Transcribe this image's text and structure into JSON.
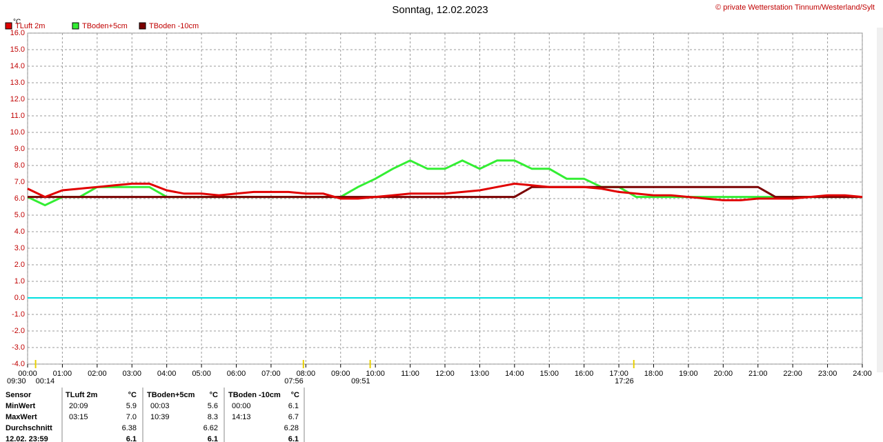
{
  "chart_data": {
    "type": "line",
    "title": "Sonntag, 12.02.2023",
    "copyright": "© private Wetterstation Tinnum/Westerland/Sylt",
    "y_label": "°C",
    "xlim": [
      0,
      24
    ],
    "ylim": [
      -4,
      16
    ],
    "grid": true,
    "xticks": [
      {
        "value": 0,
        "label": "00:00"
      },
      {
        "value": 1,
        "label": "01:00"
      },
      {
        "value": 2,
        "label": "02:00"
      },
      {
        "value": 3,
        "label": "03:00"
      },
      {
        "value": 4,
        "label": "04:00"
      },
      {
        "value": 5,
        "label": "05:00"
      },
      {
        "value": 6,
        "label": "06:00"
      },
      {
        "value": 7,
        "label": "07:00"
      },
      {
        "value": 8,
        "label": "08:00"
      },
      {
        "value": 9,
        "label": "09:00"
      },
      {
        "value": 10,
        "label": "10:00"
      },
      {
        "value": 11,
        "label": "11:00"
      },
      {
        "value": 12,
        "label": "12:00"
      },
      {
        "value": 13,
        "label": "13:00"
      },
      {
        "value": 14,
        "label": "14:00"
      },
      {
        "value": 15,
        "label": "15:00"
      },
      {
        "value": 16,
        "label": "16:00"
      },
      {
        "value": 17,
        "label": "17:00"
      },
      {
        "value": 18,
        "label": "18:00"
      },
      {
        "value": 19,
        "label": "19:00"
      },
      {
        "value": 20,
        "label": "20:00"
      },
      {
        "value": 21,
        "label": "21:00"
      },
      {
        "value": 22,
        "label": "22:00"
      },
      {
        "value": 23,
        "label": "23:00"
      },
      {
        "value": 24,
        "label": "24:00"
      }
    ],
    "yticks": [
      {
        "value": -4,
        "label": "-4.0"
      },
      {
        "value": -3,
        "label": "-3.0"
      },
      {
        "value": -2,
        "label": "-2.0"
      },
      {
        "value": -1,
        "label": "-1.0"
      },
      {
        "value": 0,
        "label": "0.0"
      },
      {
        "value": 1,
        "label": "1.0"
      },
      {
        "value": 2,
        "label": "2.0"
      },
      {
        "value": 3,
        "label": "3.0"
      },
      {
        "value": 4,
        "label": "4.0"
      },
      {
        "value": 5,
        "label": "5.0"
      },
      {
        "value": 6,
        "label": "6.0"
      },
      {
        "value": 7,
        "label": "7.0"
      },
      {
        "value": 8,
        "label": "8.0"
      },
      {
        "value": 9,
        "label": "9.0"
      },
      {
        "value": 10,
        "label": "10.0"
      },
      {
        "value": 11,
        "label": "11.0"
      },
      {
        "value": 12,
        "label": "12.0"
      },
      {
        "value": 13,
        "label": "13.0"
      },
      {
        "value": 14,
        "label": "14.0"
      },
      {
        "value": 15,
        "label": "15.0"
      },
      {
        "value": 16,
        "label": "16.0"
      }
    ],
    "reference_line": {
      "value": 0,
      "color": "#00e0e0"
    },
    "x": [
      0,
      0.5,
      1,
      1.5,
      2,
      2.5,
      3,
      3.5,
      4,
      4.5,
      5,
      5.5,
      6,
      6.5,
      7,
      7.5,
      8,
      8.5,
      9,
      9.5,
      10,
      10.5,
      11,
      11.5,
      12,
      12.5,
      13,
      13.5,
      14,
      14.5,
      15,
      15.5,
      16,
      16.5,
      17,
      17.5,
      18,
      18.5,
      19,
      19.5,
      20,
      20.5,
      21,
      21.5,
      22,
      22.5,
      23,
      23.5,
      24
    ],
    "series": [
      {
        "name": "TLuft 2m",
        "color": "#e00000",
        "values": [
          6.6,
          6.1,
          6.5,
          6.6,
          6.7,
          6.8,
          6.9,
          6.9,
          6.5,
          6.3,
          6.3,
          6.2,
          6.3,
          6.4,
          6.4,
          6.4,
          6.3,
          6.3,
          6.0,
          6.0,
          6.1,
          6.2,
          6.3,
          6.3,
          6.3,
          6.4,
          6.5,
          6.7,
          6.9,
          6.8,
          6.7,
          6.7,
          6.7,
          6.6,
          6.4,
          6.3,
          6.2,
          6.2,
          6.1,
          6.0,
          5.9,
          5.9,
          6.0,
          6.0,
          6.0,
          6.1,
          6.2,
          6.2,
          6.1
        ]
      },
      {
        "name": "TBoden+5cm",
        "color": "#33ee33",
        "values": [
          6.1,
          5.6,
          6.1,
          6.1,
          6.7,
          6.7,
          6.7,
          6.7,
          6.1,
          6.1,
          6.1,
          6.1,
          6.1,
          6.1,
          6.1,
          6.1,
          6.1,
          6.1,
          6.1,
          6.7,
          7.2,
          7.8,
          8.3,
          7.8,
          7.8,
          8.3,
          7.8,
          8.3,
          8.3,
          7.8,
          7.8,
          7.2,
          7.2,
          6.7,
          6.7,
          6.1,
          6.1,
          6.1,
          6.1,
          6.1,
          6.1,
          6.1,
          6.1,
          6.1,
          6.1,
          6.1,
          6.1,
          6.1,
          6.1
        ]
      },
      {
        "name": "TBoden -10cm",
        "color": "#7a0000",
        "values": [
          6.1,
          6.1,
          6.1,
          6.1,
          6.1,
          6.1,
          6.1,
          6.1,
          6.1,
          6.1,
          6.1,
          6.1,
          6.1,
          6.1,
          6.1,
          6.1,
          6.1,
          6.1,
          6.1,
          6.1,
          6.1,
          6.1,
          6.1,
          6.1,
          6.1,
          6.1,
          6.1,
          6.1,
          6.1,
          6.7,
          6.7,
          6.7,
          6.7,
          6.7,
          6.7,
          6.7,
          6.7,
          6.7,
          6.7,
          6.7,
          6.7,
          6.7,
          6.7,
          6.1,
          6.1,
          6.1,
          6.1,
          6.1,
          6.1
        ]
      }
    ],
    "annotations": [
      {
        "value": 0.23,
        "label": "00:14"
      },
      {
        "value": 7.93,
        "label": "07:56"
      },
      {
        "value": 9.85,
        "label": "09:51"
      },
      {
        "value": 17.43,
        "label": "17:26"
      }
    ],
    "left_note": "09:30"
  },
  "table": {
    "header": [
      "Sensor",
      "TLuft 2m",
      "°C",
      "TBoden+5cm",
      "°C",
      "TBoden -10cm",
      "°C"
    ],
    "rows": [
      [
        "MinWert",
        "20:09",
        "5.9",
        "00:03",
        "5.6",
        "00:00",
        "6.1"
      ],
      [
        "MaxWert",
        "03:15",
        "7.0",
        "10:39",
        "8.3",
        "14:13",
        "6.7"
      ],
      [
        "Durchschnitt",
        null,
        "6.38",
        null,
        "6.62",
        null,
        "6.28"
      ],
      [
        "12.02. 23:59",
        null,
        "6.1",
        null,
        "6.1",
        null,
        "6.1"
      ]
    ]
  }
}
